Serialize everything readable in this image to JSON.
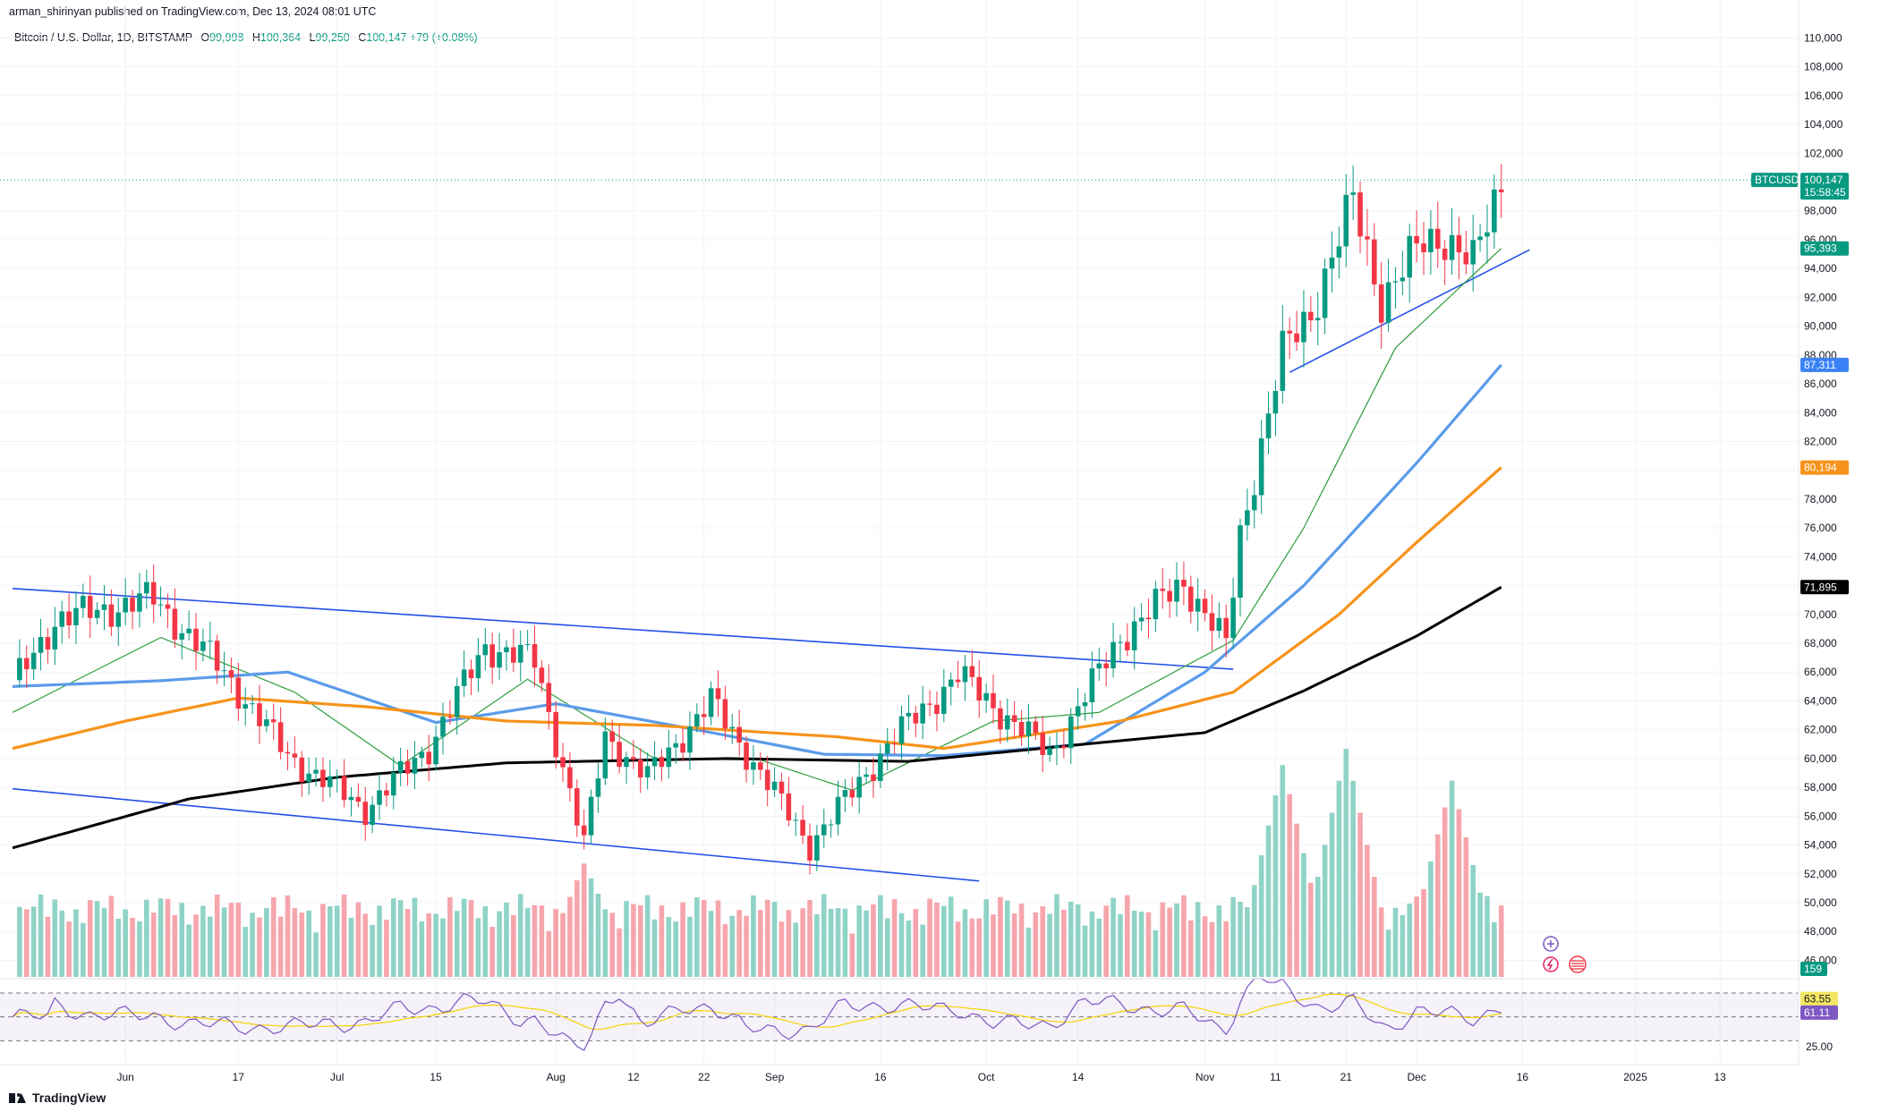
{
  "header": {
    "published": "arman_shirinyan published on TradingView.com, Dec 13, 2024 08:01 UTC"
  },
  "symbol": {
    "title": "Bitcoin / U.S. Dollar, 1D, BITSTAMP",
    "open_label": "O",
    "open": "99,998",
    "high_label": "H",
    "high": "100,364",
    "low_label": "L",
    "low": "99,250",
    "close_label": "C",
    "close": "100,147",
    "change": "+79 (+0.08%)"
  },
  "price_tag": {
    "symbol": "BTCUSD",
    "price": "100,147",
    "countdown": "15:58:45"
  },
  "ma_tags": [
    {
      "value": "95,393",
      "color": "#089981"
    },
    {
      "value": "87,311",
      "color": "#3b82f6"
    },
    {
      "value": "80,194",
      "color": "#f7931a"
    },
    {
      "value": "71,895",
      "color": "#000000"
    }
  ],
  "volume_tag": "159",
  "rsi_tags": [
    {
      "value": "63.55",
      "color": "#f5e663",
      "text_color": "#131722"
    },
    {
      "value": "61.11",
      "color": "#7e57c2",
      "text_color": "#ffffff"
    }
  ],
  "logo_text": "TradingView",
  "colors": {
    "up": "#089981",
    "down": "#f23645",
    "ma20": "#2e9e3e",
    "ma50": "#5b9bea",
    "ma100": "#f7931a",
    "ma200": "#000000",
    "trend": "#2350e8",
    "rsi": "#7e57c2",
    "rsi_ma": "#f5d300"
  },
  "chart_data": {
    "type": "candlestick",
    "x_start": "2024-05-16",
    "x_end": "2024-12-13",
    "ylim": [
      44000,
      111000
    ],
    "y_ticks": [
      46000,
      48000,
      50000,
      52000,
      54000,
      56000,
      58000,
      60000,
      62000,
      64000,
      66000,
      68000,
      70000,
      72000,
      74000,
      76000,
      78000,
      80000,
      82000,
      84000,
      86000,
      88000,
      90000,
      92000,
      94000,
      96000,
      98000,
      100000,
      102000,
      104000,
      106000,
      108000,
      110000
    ],
    "x_ticks": [
      {
        "label": "Jun",
        "date": "2024-06-01"
      },
      {
        "label": "17",
        "date": "2024-06-17"
      },
      {
        "label": "Jul",
        "date": "2024-07-01"
      },
      {
        "label": "15",
        "date": "2024-07-15"
      },
      {
        "label": "Aug",
        "date": "2024-08-01"
      },
      {
        "label": "12",
        "date": "2024-08-12"
      },
      {
        "label": "22",
        "date": "2024-08-22"
      },
      {
        "label": "Sep",
        "date": "2024-09-01"
      },
      {
        "label": "16",
        "date": "2024-09-16"
      },
      {
        "label": "Oct",
        "date": "2024-10-01"
      },
      {
        "label": "14",
        "date": "2024-10-14"
      },
      {
        "label": "Nov",
        "date": "2024-11-01"
      },
      {
        "label": "11",
        "date": "2024-11-11"
      },
      {
        "label": "21",
        "date": "2024-11-21"
      },
      {
        "label": "Dec",
        "date": "2024-12-01"
      },
      {
        "label": "16",
        "date": "2024-12-16"
      },
      {
        "label": "2025",
        "date": "2025-01-01"
      },
      {
        "label": "13",
        "date": "2025-01-13"
      }
    ],
    "close_path": [
      [
        "2024-05-16",
        65000
      ],
      [
        "2024-05-22",
        69600
      ],
      [
        "2024-06-05",
        71100
      ],
      [
        "2024-06-15",
        66000
      ],
      [
        "2024-06-24",
        60200
      ],
      [
        "2024-07-05",
        56500
      ],
      [
        "2024-07-14",
        60800
      ],
      [
        "2024-07-22",
        67800
      ],
      [
        "2024-07-29",
        66800
      ],
      [
        "2024-08-05",
        54000
      ],
      [
        "2024-08-08",
        61600
      ],
      [
        "2024-08-14",
        58700
      ],
      [
        "2024-08-23",
        64000
      ],
      [
        "2024-09-06",
        54000
      ],
      [
        "2024-09-18",
        61500
      ],
      [
        "2024-09-27",
        65800
      ],
      [
        "2024-10-10",
        60300
      ],
      [
        "2024-10-20",
        68400
      ],
      [
        "2024-10-29",
        72300
      ],
      [
        "2024-11-04",
        67800
      ],
      [
        "2024-11-06",
        75600
      ],
      [
        "2024-11-12",
        88100
      ],
      [
        "2024-11-16",
        91000
      ],
      [
        "2024-11-22",
        98600
      ],
      [
        "2024-11-26",
        91900
      ],
      [
        "2024-12-02",
        95800
      ],
      [
        "2024-12-05",
        96300
      ],
      [
        "2024-12-09",
        94200
      ],
      [
        "2024-12-13",
        100147
      ]
    ],
    "ma": [
      {
        "period": 20,
        "last": 95393,
        "path": [
          [
            "2024-05-16",
            63200
          ],
          [
            "2024-06-06",
            68400
          ],
          [
            "2024-06-25",
            64600
          ],
          [
            "2024-07-10",
            59500
          ],
          [
            "2024-07-28",
            65500
          ],
          [
            "2024-08-15",
            60000
          ],
          [
            "2024-08-30",
            59900
          ],
          [
            "2024-09-12",
            57800
          ],
          [
            "2024-10-02",
            62600
          ],
          [
            "2024-10-17",
            63200
          ],
          [
            "2024-11-05",
            68200
          ],
          [
            "2024-11-15",
            76000
          ],
          [
            "2024-11-28",
            88500
          ],
          [
            "2024-12-13",
            95393
          ]
        ]
      },
      {
        "period": 50,
        "last": 87311,
        "path": [
          [
            "2024-05-16",
            65000
          ],
          [
            "2024-06-06",
            65400
          ],
          [
            "2024-06-24",
            66000
          ],
          [
            "2024-07-15",
            62500
          ],
          [
            "2024-08-01",
            63800
          ],
          [
            "2024-08-22",
            61900
          ],
          [
            "2024-09-08",
            60300
          ],
          [
            "2024-09-25",
            60200
          ],
          [
            "2024-10-15",
            61000
          ],
          [
            "2024-11-01",
            66000
          ],
          [
            "2024-11-15",
            72000
          ],
          [
            "2024-12-01",
            80500
          ],
          [
            "2024-12-13",
            87311
          ]
        ]
      },
      {
        "period": 100,
        "last": 80194,
        "path": [
          [
            "2024-05-16",
            60700
          ],
          [
            "2024-06-01",
            62600
          ],
          [
            "2024-06-17",
            64200
          ],
          [
            "2024-07-05",
            63600
          ],
          [
            "2024-07-25",
            62600
          ],
          [
            "2024-08-15",
            62300
          ],
          [
            "2024-09-10",
            61500
          ],
          [
            "2024-09-25",
            60700
          ],
          [
            "2024-10-20",
            62600
          ],
          [
            "2024-11-05",
            64600
          ],
          [
            "2024-11-20",
            70000
          ],
          [
            "2024-12-01",
            75000
          ],
          [
            "2024-12-13",
            80194
          ]
        ]
      },
      {
        "period": 200,
        "last": 71895,
        "path": [
          [
            "2024-05-16",
            53800
          ],
          [
            "2024-06-10",
            57200
          ],
          [
            "2024-07-01",
            58700
          ],
          [
            "2024-07-25",
            59700
          ],
          [
            "2024-08-25",
            60000
          ],
          [
            "2024-09-20",
            59800
          ],
          [
            "2024-10-15",
            61000
          ],
          [
            "2024-11-01",
            61800
          ],
          [
            "2024-11-15",
            64700
          ],
          [
            "2024-12-01",
            68500
          ],
          [
            "2024-12-13",
            71895
          ]
        ]
      }
    ],
    "trendlines": [
      {
        "from": [
          "2024-05-16",
          71800
        ],
        "to": [
          "2024-11-05",
          66200
        ]
      },
      {
        "from": [
          "2024-05-16",
          57900
        ],
        "to": [
          "2024-09-30",
          51500
        ]
      },
      {
        "from": [
          "2024-11-13",
          86800
        ],
        "to": [
          "2024-12-17",
          95300
        ]
      }
    ],
    "volume_peaks": [
      [
        "2024-11-12",
        160
      ],
      [
        "2024-11-21",
        170
      ],
      [
        "2024-12-06",
        152
      ],
      [
        "2024-08-05",
        100
      ]
    ],
    "rsi": {
      "overbought": 70,
      "oversold": 30,
      "last": 61.11,
      "ma_last": 63.55
    }
  }
}
